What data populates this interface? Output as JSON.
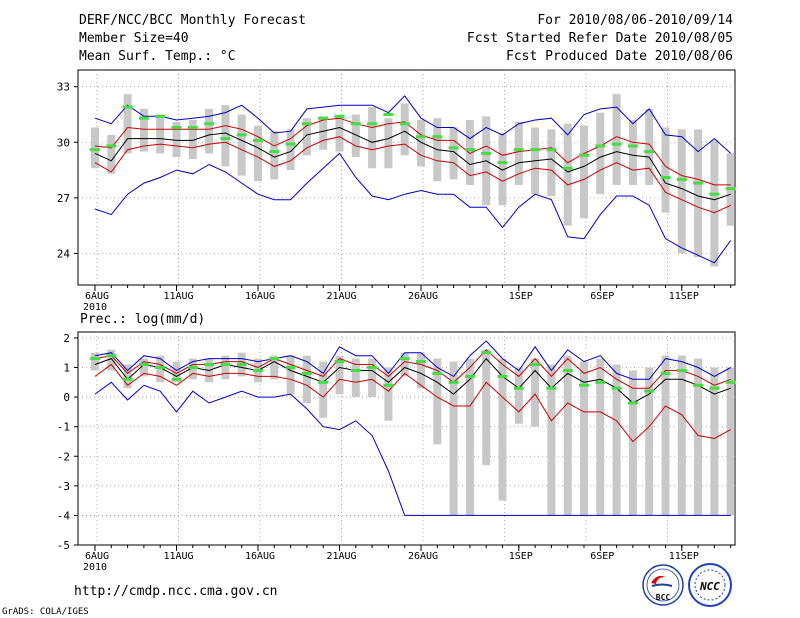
{
  "header": {
    "left": [
      "DERF/NCC/BCC Monthly Forecast",
      "Member Size=40",
      "Mean Surf. Temp.: °C"
    ],
    "right": [
      "For 2010/08/06-2010/09/14",
      "Fcst Started Refer Date 2010/08/05",
      "Fcst Produced Date 2010/08/06"
    ]
  },
  "footer": {
    "url": "http://cmdp.ncc.cma.gov.cn",
    "credit": "GrADS: COLA/IGES",
    "logo_bcc_text": "BCC",
    "logo_ncc_text": "NCC"
  },
  "chart_data": [
    {
      "type": "boxplot-line",
      "title": "Mean Surf. Temp.: °C",
      "xlabel": "",
      "ylabel": "",
      "n_days": 40,
      "ylim": [
        22.3,
        33.9
      ],
      "yticks": [
        24,
        27,
        30,
        33
      ],
      "xticks": [
        {
          "day": 0,
          "label": "6AUG",
          "sublabel": "2010"
        },
        {
          "day": 5,
          "label": "11AUG"
        },
        {
          "day": 10,
          "label": "16AUG"
        },
        {
          "day": 15,
          "label": "21AUG"
        },
        {
          "day": 20,
          "label": "26AUG"
        },
        {
          "day": 26,
          "label": "1SEP"
        },
        {
          "day": 31,
          "label": "6SEP"
        },
        {
          "day": 36,
          "label": "11SEP"
        }
      ],
      "colors": {
        "max": "#0000cc",
        "min": "#0000cc",
        "mean": "#000000",
        "spread": "#cc0000",
        "box": "#c8c8c8",
        "obs": "#44dd44"
      },
      "series": [
        {
          "name": "max",
          "values": [
            31.3,
            31.0,
            32.0,
            31.4,
            31.4,
            31.2,
            31.3,
            31.4,
            31.6,
            32.0,
            31.3,
            30.5,
            30.6,
            31.8,
            31.9,
            32.0,
            32.0,
            32.0,
            31.6,
            32.5,
            31.3,
            30.8,
            30.8,
            30.2,
            30.8,
            30.4,
            31.0,
            31.2,
            31.3,
            30.4,
            31.5,
            31.8,
            31.9,
            31.0,
            31.8,
            30.4,
            30.3,
            29.5,
            30.2,
            29.4
          ]
        },
        {
          "name": "min",
          "values": [
            26.4,
            26.1,
            27.2,
            27.8,
            28.1,
            28.5,
            28.3,
            28.8,
            28.4,
            27.8,
            27.2,
            26.9,
            26.9,
            27.8,
            28.6,
            29.4,
            28.1,
            27.1,
            26.9,
            27.2,
            27.4,
            27.2,
            27.2,
            26.5,
            26.5,
            25.4,
            26.5,
            27.2,
            26.9,
            24.9,
            24.8,
            26.1,
            27.1,
            27.1,
            26.6,
            24.8,
            24.3,
            23.9,
            23.5,
            24.7
          ]
        },
        {
          "name": "upper",
          "values": [
            29.8,
            29.7,
            30.8,
            30.7,
            30.7,
            30.7,
            30.7,
            30.7,
            30.9,
            30.7,
            30.3,
            29.8,
            30.2,
            30.9,
            31.2,
            31.3,
            31.0,
            30.8,
            31.0,
            31.1,
            30.4,
            30.1,
            30.1,
            29.4,
            29.8,
            29.3,
            29.5,
            29.6,
            29.7,
            28.9,
            29.4,
            29.8,
            30.3,
            30.0,
            29.9,
            28.7,
            28.2,
            28.0,
            27.7,
            27.7
          ]
        },
        {
          "name": "mean",
          "values": [
            29.4,
            29.0,
            30.2,
            30.2,
            30.2,
            30.1,
            30.1,
            30.4,
            30.5,
            30.1,
            29.7,
            29.2,
            29.5,
            30.4,
            30.6,
            30.8,
            30.4,
            30.0,
            30.2,
            30.6,
            30.0,
            29.6,
            29.5,
            28.8,
            29.0,
            28.5,
            28.9,
            29.0,
            29.1,
            28.4,
            28.7,
            29.2,
            29.5,
            29.3,
            29.2,
            27.8,
            27.5,
            27.1,
            26.9,
            27.2
          ]
        },
        {
          "name": "lower",
          "values": [
            28.9,
            28.4,
            29.6,
            29.8,
            29.9,
            29.8,
            29.7,
            29.9,
            30.0,
            29.6,
            29.2,
            28.7,
            29.0,
            29.7,
            30.1,
            30.3,
            29.8,
            29.6,
            29.8,
            29.9,
            29.3,
            29.0,
            28.9,
            28.2,
            28.4,
            27.9,
            28.3,
            28.6,
            28.5,
            27.7,
            28.0,
            28.5,
            28.9,
            28.5,
            28.6,
            27.3,
            26.9,
            26.5,
            26.2,
            26.6
          ]
        },
        {
          "name": "obs",
          "values": [
            29.6,
            29.8,
            31.9,
            31.3,
            31.4,
            30.8,
            30.8,
            31.0,
            30.2,
            30.4,
            30.1,
            29.5,
            29.9,
            31.0,
            31.3,
            31.4,
            31.0,
            31.0,
            31.5,
            31.0,
            30.3,
            30.3,
            29.7,
            29.6,
            29.4,
            28.9,
            29.6,
            29.6,
            29.6,
            28.6,
            29.3,
            29.8,
            29.9,
            29.8,
            29.5,
            28.1,
            28.0,
            27.8,
            27.2,
            27.5
          ]
        },
        {
          "name": "box_low",
          "values": [
            28.6,
            28.3,
            29.4,
            29.5,
            29.4,
            29.2,
            29.1,
            29.4,
            28.7,
            28.2,
            27.9,
            28.0,
            28.5,
            29.3,
            29.6,
            29.5,
            29.2,
            28.6,
            28.6,
            29.3,
            28.7,
            27.9,
            28.0,
            27.7,
            26.6,
            26.6,
            27.7,
            27.2,
            27.1,
            25.5,
            25.9,
            27.2,
            27.7,
            27.7,
            27.7,
            26.2,
            24.0,
            23.8,
            23.3,
            25.5
          ]
        },
        {
          "name": "box_high",
          "values": [
            30.8,
            30.4,
            32.6,
            31.8,
            31.5,
            31.1,
            31.2,
            31.8,
            32.0,
            31.5,
            30.9,
            30.6,
            30.7,
            31.3,
            31.4,
            31.4,
            31.5,
            31.9,
            31.3,
            32.1,
            31.2,
            31.3,
            30.8,
            31.2,
            31.4,
            30.5,
            31.1,
            30.8,
            30.7,
            31.0,
            30.9,
            31.6,
            32.6,
            31.2,
            31.8,
            30.8,
            30.7,
            30.7,
            30.1,
            29.4
          ]
        }
      ]
    },
    {
      "type": "boxplot-line",
      "title": "Prec.: log(mm/d)",
      "xlabel": "",
      "ylabel": "",
      "n_days": 40,
      "ylim": [
        -5,
        2.2
      ],
      "yticks": [
        -5,
        -4,
        -3,
        -2,
        -1,
        0,
        1,
        2
      ],
      "xticks": [
        {
          "day": 0,
          "label": "6AUG",
          "sublabel": "2010"
        },
        {
          "day": 5,
          "label": "11AUG"
        },
        {
          "day": 10,
          "label": "16AUG"
        },
        {
          "day": 15,
          "label": "21AUG"
        },
        {
          "day": 20,
          "label": "26AUG"
        },
        {
          "day": 26,
          "label": "1SEP"
        },
        {
          "day": 31,
          "label": "6SEP"
        },
        {
          "day": 36,
          "label": "11SEP"
        }
      ],
      "colors": {
        "max": "#0000cc",
        "min": "#0000cc",
        "mean": "#000000",
        "spread": "#cc0000",
        "box": "#c8c8c8",
        "obs": "#44dd44"
      },
      "series": [
        {
          "name": "max",
          "values": [
            1.4,
            1.5,
            0.9,
            1.4,
            1.3,
            0.9,
            1.2,
            1.3,
            1.3,
            1.3,
            1.2,
            1.3,
            1.4,
            1.2,
            0.8,
            1.7,
            1.4,
            1.4,
            0.8,
            1.5,
            1.5,
            1.0,
            0.7,
            1.4,
            1.9,
            1.3,
            0.9,
            1.7,
            0.9,
            1.6,
            1.2,
            1.4,
            0.8,
            0.6,
            0.6,
            1.3,
            1.2,
            1.0,
            0.7,
            1.0
          ]
        },
        {
          "name": "min",
          "values": [
            0.1,
            0.5,
            -0.1,
            0.4,
            0.2,
            -0.5,
            0.2,
            -0.2,
            0.0,
            0.2,
            0.0,
            0.0,
            0.1,
            -0.4,
            -1.0,
            -1.1,
            -0.8,
            -1.3,
            -2.5,
            -4.0,
            -4.0,
            -4.0,
            -4.0,
            -4.0,
            -4.0,
            -4.0,
            -4.0,
            -4.0,
            -4.0,
            -4.0,
            -4.0,
            -4.0,
            -4.0,
            -4.0,
            -4.0,
            -4.0,
            -4.0,
            -4.0,
            -4.0,
            -4.0
          ]
        },
        {
          "name": "upper",
          "values": [
            1.3,
            1.4,
            0.8,
            1.2,
            1.1,
            0.8,
            1.1,
            1.1,
            1.2,
            1.2,
            1.0,
            1.3,
            1.1,
            0.9,
            0.7,
            1.3,
            1.1,
            1.1,
            0.7,
            1.2,
            1.1,
            0.9,
            0.5,
            1.0,
            1.6,
            1.1,
            0.7,
            1.3,
            0.7,
            1.3,
            0.8,
            1.0,
            0.6,
            0.3,
            0.3,
            0.9,
            0.9,
            0.7,
            0.4,
            0.6
          ]
        },
        {
          "name": "mean",
          "values": [
            1.1,
            1.3,
            0.6,
            1.1,
            1.0,
            0.7,
            1.0,
            0.9,
            1.1,
            1.0,
            0.9,
            1.2,
            0.9,
            0.7,
            0.5,
            1.0,
            0.9,
            0.9,
            0.5,
            1.0,
            0.8,
            0.5,
            0.1,
            0.6,
            1.3,
            0.7,
            0.3,
            0.9,
            0.3,
            0.8,
            0.5,
            0.6,
            0.3,
            -0.2,
            0.1,
            0.6,
            0.6,
            0.4,
            0.1,
            0.3
          ]
        },
        {
          "name": "lower",
          "values": [
            0.7,
            1.1,
            0.4,
            0.8,
            0.7,
            0.4,
            0.8,
            0.7,
            0.8,
            0.8,
            0.7,
            0.7,
            0.6,
            0.4,
            0.0,
            0.6,
            0.5,
            0.6,
            0.2,
            0.8,
            0.4,
            0.0,
            -0.3,
            -0.3,
            0.5,
            0.0,
            -0.5,
            0.1,
            -0.8,
            -0.2,
            -0.5,
            -0.5,
            -0.8,
            -1.5,
            -1.0,
            -0.3,
            -0.6,
            -1.3,
            -1.4,
            -1.1
          ]
        },
        {
          "name": "obs",
          "values": [
            1.3,
            1.4,
            0.6,
            1.1,
            1.0,
            0.6,
            1.0,
            1.1,
            1.1,
            1.1,
            0.9,
            1.3,
            1.0,
            0.8,
            0.5,
            1.2,
            0.9,
            1.0,
            0.4,
            1.3,
            1.2,
            0.8,
            0.5,
            0.7,
            1.5,
            0.7,
            0.3,
            1.1,
            0.3,
            0.9,
            0.4,
            0.5,
            0.3,
            -0.2,
            0.2,
            0.8,
            0.9,
            0.4,
            0.3,
            0.5
          ]
        },
        {
          "name": "box_low",
          "values": [
            0.9,
            0.9,
            0.3,
            0.7,
            0.5,
            0.5,
            0.6,
            0.5,
            0.6,
            0.7,
            0.5,
            0.6,
            0.1,
            -0.2,
            -0.7,
            0.1,
            0.0,
            0.0,
            -0.8,
            0.7,
            0.3,
            -1.6,
            -4.0,
            -4.0,
            -2.3,
            -3.5,
            -0.9,
            -1.0,
            -4.0,
            -4.0,
            -4.0,
            -4.0,
            -4.0,
            -4.0,
            -4.0,
            -4.0,
            -4.0,
            -4.0,
            -4.0,
            -4.0
          ]
        },
        {
          "name": "box_high",
          "values": [
            1.5,
            1.6,
            1.1,
            1.3,
            1.4,
            1.2,
            1.3,
            1.3,
            1.4,
            1.5,
            1.3,
            1.4,
            1.4,
            1.4,
            1.2,
            1.4,
            1.3,
            1.3,
            1.0,
            1.5,
            1.5,
            1.3,
            1.2,
            1.3,
            1.6,
            1.3,
            1.0,
            1.3,
            1.1,
            1.4,
            1.2,
            1.3,
            1.1,
            0.9,
            1.0,
            1.4,
            1.4,
            1.3,
            1.0,
            1.0
          ]
        }
      ]
    }
  ]
}
